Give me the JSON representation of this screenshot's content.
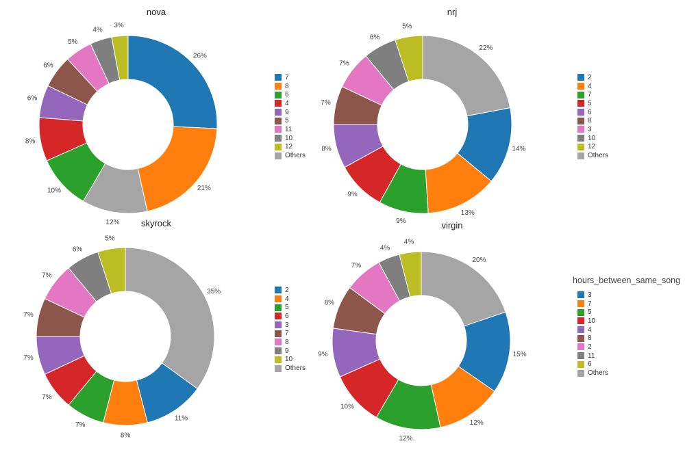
{
  "figure": {
    "background": "#ffffff",
    "slice_label_color": "#444444",
    "legend_text_color": "#333333",
    "labels_unit": "%"
  },
  "chart_data": [
    {
      "type": "pie",
      "hole": 0.5,
      "title": "nova",
      "legend_title": "",
      "legend_position": "right",
      "categories": [
        "7",
        "8",
        "6",
        "4",
        "9",
        "5",
        "11",
        "10",
        "12",
        "Others"
      ],
      "values": [
        26,
        21,
        10,
        8,
        6,
        6,
        5,
        4,
        3,
        12
      ],
      "colors": [
        "#1f77b4",
        "#ff7f0e",
        "#2ca02c",
        "#d62728",
        "#9467bd",
        "#8c564b",
        "#e377c2",
        "#7f7f7f",
        "#bcbd22",
        "#a5a5a5"
      ],
      "draw_order": [
        "7",
        "8",
        "Others",
        "6",
        "4",
        "9",
        "5",
        "11",
        "10",
        "12"
      ]
    },
    {
      "type": "pie",
      "hole": 0.5,
      "title": "nrj",
      "legend_title": "",
      "legend_position": "right",
      "categories": [
        "2",
        "4",
        "7",
        "5",
        "6",
        "8",
        "3",
        "10",
        "12",
        "Others"
      ],
      "values": [
        14,
        13,
        9,
        9,
        8,
        7,
        7,
        6,
        5,
        22
      ],
      "colors": [
        "#1f77b4",
        "#ff7f0e",
        "#2ca02c",
        "#d62728",
        "#9467bd",
        "#8c564b",
        "#e377c2",
        "#7f7f7f",
        "#bcbd22",
        "#a5a5a5"
      ],
      "draw_order": [
        "Others",
        "2",
        "4",
        "7",
        "5",
        "6",
        "8",
        "3",
        "10",
        "12"
      ]
    },
    {
      "type": "pie",
      "hole": 0.5,
      "title": "skyrock",
      "legend_title": "",
      "legend_position": "right",
      "categories": [
        "2",
        "4",
        "5",
        "6",
        "3",
        "7",
        "8",
        "9",
        "10",
        "Others"
      ],
      "values": [
        11,
        8,
        7,
        7,
        7,
        7,
        7,
        6,
        5,
        35
      ],
      "colors": [
        "#1f77b4",
        "#ff7f0e",
        "#2ca02c",
        "#d62728",
        "#9467bd",
        "#8c564b",
        "#e377c2",
        "#7f7f7f",
        "#bcbd22",
        "#a5a5a5"
      ],
      "draw_order": [
        "Others",
        "2",
        "4",
        "5",
        "6",
        "3",
        "7",
        "8",
        "9",
        "10"
      ]
    },
    {
      "type": "pie",
      "hole": 0.5,
      "title": "virgin",
      "legend_title": "hours_between_same_song",
      "legend_position": "right",
      "categories": [
        "3",
        "7",
        "5",
        "10",
        "4",
        "8",
        "2",
        "11",
        "6",
        "Others"
      ],
      "values": [
        15,
        12,
        12,
        10,
        9,
        8,
        7,
        4,
        4,
        20
      ],
      "colors": [
        "#1f77b4",
        "#ff7f0e",
        "#2ca02c",
        "#d62728",
        "#9467bd",
        "#8c564b",
        "#e377c2",
        "#7f7f7f",
        "#bcbd22",
        "#a5a5a5"
      ],
      "draw_order": [
        "Others",
        "3",
        "7",
        "5",
        "10",
        "4",
        "8",
        "2",
        "11",
        "6"
      ]
    }
  ]
}
